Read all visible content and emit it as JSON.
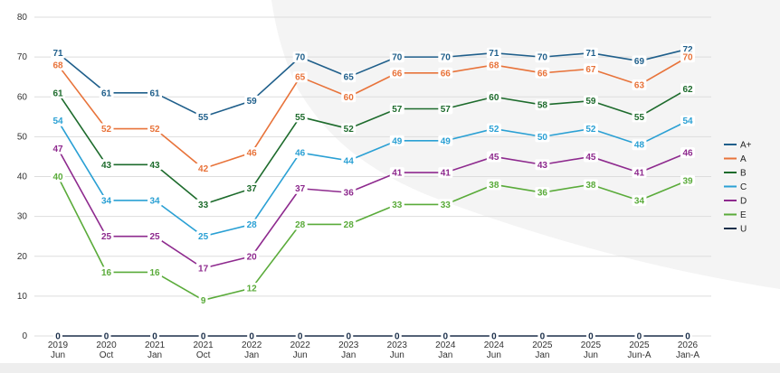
{
  "chart_data": {
    "type": "line",
    "x": [
      "2019 Jun",
      "2020 Oct",
      "2021 Jan",
      "2021 Oct",
      "2022 Jan",
      "2022 Jun",
      "2023 Jan",
      "2023 Jun",
      "2024 Jan",
      "2024 Jun",
      "2025 Jan",
      "2025 Jun",
      "2025 Jun-A",
      "2026 Jan-A"
    ],
    "x_tick_labels": [
      [
        "2019",
        "Jun"
      ],
      [
        "2020",
        "Oct"
      ],
      [
        "2021",
        "Jan"
      ],
      [
        "2021",
        "Oct"
      ],
      [
        "2022",
        "Jan"
      ],
      [
        "2022",
        "Jun"
      ],
      [
        "2023",
        "Jan"
      ],
      [
        "2023",
        "Jun"
      ],
      [
        "2024",
        "Jan"
      ],
      [
        "2024",
        "Jun"
      ],
      [
        "2025",
        "Jan"
      ],
      [
        "2025",
        "Jun"
      ],
      [
        "2025",
        "Jun-A"
      ],
      [
        "2026",
        "Jan-A"
      ]
    ],
    "y_ticks": [
      0,
      10,
      20,
      30,
      40,
      50,
      60,
      70,
      80
    ],
    "ylim": [
      0,
      80
    ],
    "grid": "horizontal",
    "legend_position": "right",
    "series": [
      {
        "name": "A+",
        "color": "#1f5f8b",
        "values": [
          71,
          61,
          61,
          55,
          59,
          70,
          65,
          70,
          70,
          71,
          70,
          71,
          69,
          72
        ]
      },
      {
        "name": "A",
        "color": "#e8733a",
        "values": [
          68,
          52,
          52,
          42,
          46,
          65,
          60,
          66,
          66,
          68,
          66,
          67,
          63,
          70
        ]
      },
      {
        "name": "B",
        "color": "#1d6b2c",
        "values": [
          61,
          43,
          43,
          33,
          37,
          55,
          52,
          57,
          57,
          60,
          58,
          59,
          55,
          62
        ]
      },
      {
        "name": "C",
        "color": "#2aa0d4",
        "values": [
          54,
          34,
          34,
          25,
          28,
          46,
          44,
          49,
          49,
          52,
          50,
          52,
          48,
          54
        ]
      },
      {
        "name": "D",
        "color": "#8e2a8e",
        "values": [
          47,
          25,
          25,
          17,
          20,
          37,
          36,
          41,
          41,
          45,
          43,
          45,
          41,
          46
        ]
      },
      {
        "name": "E",
        "color": "#5aab3a",
        "values": [
          40,
          16,
          16,
          9,
          12,
          28,
          28,
          33,
          33,
          38,
          36,
          38,
          34,
          39
        ]
      },
      {
        "name": "U",
        "color": "#1b2f4a",
        "values": [
          0,
          0,
          0,
          0,
          0,
          0,
          0,
          0,
          0,
          0,
          0,
          0,
          0,
          0
        ]
      }
    ]
  }
}
